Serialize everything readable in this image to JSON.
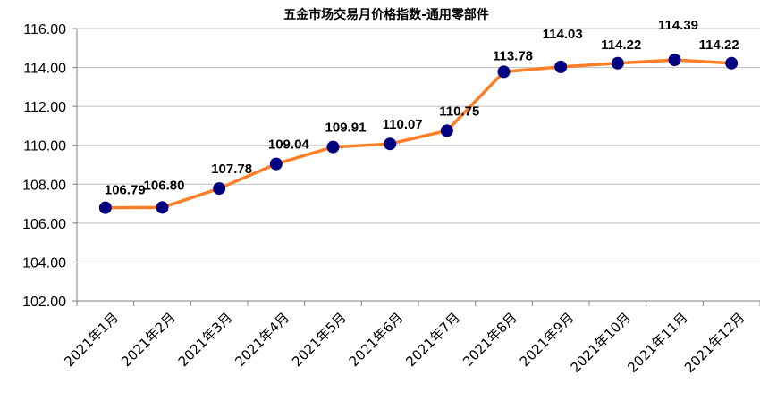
{
  "chart_data": {
    "type": "line",
    "title": "五金市场交易月价格指数-通用零部件",
    "xlabel": "",
    "ylabel": "",
    "categories": [
      "2021年1月",
      "2021年2月",
      "2021年3月",
      "2021年4月",
      "2021年5月",
      "2021年6月",
      "2021年7月",
      "2021年8月",
      "2021年9月",
      "2021年10月",
      "2021年11月",
      "2021年12月"
    ],
    "series": [
      {
        "values": [
          106.79,
          106.8,
          107.78,
          109.04,
          109.91,
          110.07,
          110.75,
          113.78,
          114.03,
          114.22,
          114.39,
          114.22
        ],
        "data_labels": [
          "106.79",
          "106.80",
          "107.78",
          "109.04",
          "109.91",
          "110.07",
          "110.75",
          "113.78",
          "114.03",
          "114.22",
          "114.39",
          "114.22"
        ]
      }
    ],
    "ylim": [
      102,
      116
    ],
    "yticks": [
      "102.00",
      "104.00",
      "106.00",
      "108.00",
      "110.00",
      "112.00",
      "114.00",
      "116.00"
    ],
    "grid": true,
    "legend": "none",
    "colors": {
      "line": "#FF7F27",
      "marker": "#000080",
      "grid": "#BFBFBF",
      "axis": "#808080"
    }
  }
}
